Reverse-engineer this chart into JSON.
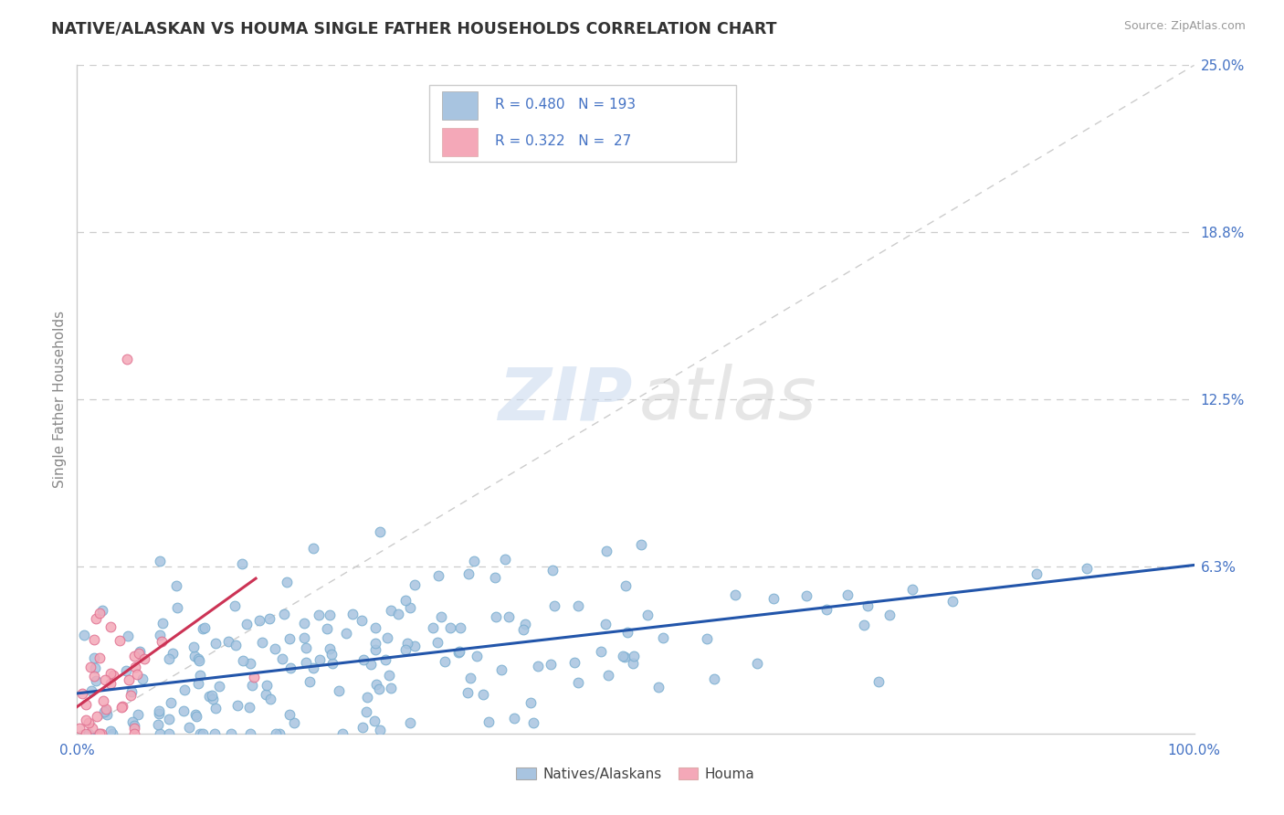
{
  "title": "NATIVE/ALASKAN VS HOUMA SINGLE FATHER HOUSEHOLDS CORRELATION CHART",
  "source": "Source: ZipAtlas.com",
  "ylabel": "Single Father Households",
  "xlim": [
    0,
    100
  ],
  "ylim": [
    0,
    25
  ],
  "native_color": "#a8c4e0",
  "native_edge_color": "#7aaed0",
  "houma_color": "#f4a8b8",
  "houma_edge_color": "#e07090",
  "native_line_color": "#2255aa",
  "houma_line_color": "#cc3355",
  "diag_line_color": "#cccccc",
  "native_R": 0.48,
  "native_N": 193,
  "houma_R": 0.322,
  "houma_N": 27,
  "legend_text_color": "#4472c4",
  "title_color": "#333333",
  "axis_label_color": "#888888",
  "tick_label_color": "#4472c4",
  "background_color": "#ffffff",
  "grid_color": "#cccccc",
  "native_scatter_seed": 42,
  "houma_scatter_seed": 123,
  "bottom_legend_labels": [
    "Natives/Alaskans",
    "Houma"
  ]
}
